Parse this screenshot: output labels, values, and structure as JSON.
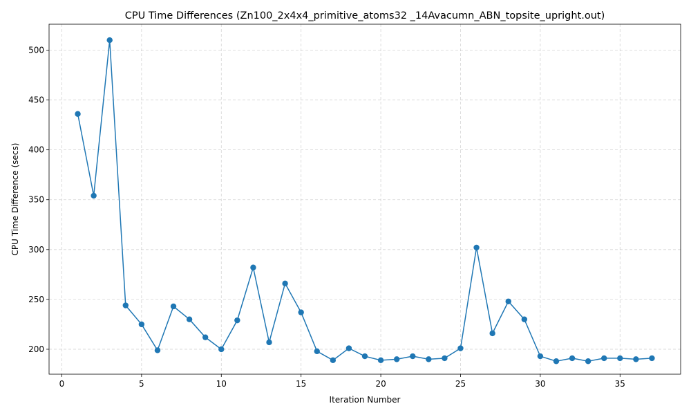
{
  "chart_data": {
    "type": "line",
    "title": "CPU Time Differences (Zn100_2x4x4_primitive_atoms32 _14Avacumn_ABN_topsite_upright.out)",
    "xlabel": "Iteration Number",
    "ylabel": "CPU Time Difference (secs)",
    "xlim": [
      -0.8,
      38.8
    ],
    "ylim": [
      175,
      526
    ],
    "xticks": [
      0,
      5,
      10,
      15,
      20,
      25,
      30,
      35
    ],
    "yticks": [
      200,
      250,
      300,
      350,
      400,
      450,
      500
    ],
    "grid": true,
    "color": "#1f77b4",
    "marker": "circle",
    "series": [
      {
        "x": [
          1,
          2,
          3,
          4,
          5,
          6,
          7,
          8,
          9,
          10,
          11,
          12,
          13,
          14,
          15,
          16,
          17,
          18,
          19,
          20,
          21,
          22,
          23,
          24,
          25,
          26,
          27,
          28,
          29,
          30,
          31,
          32,
          33,
          34,
          35,
          36,
          37
        ],
        "y": [
          436,
          354,
          510,
          244,
          225,
          199,
          243,
          230,
          212,
          200,
          229,
          282,
          207,
          266,
          237,
          198,
          189,
          201,
          193,
          189,
          190,
          193,
          190,
          191,
          201,
          302,
          216,
          248,
          230,
          193,
          188,
          191,
          188,
          191,
          191,
          190,
          191
        ]
      }
    ]
  }
}
